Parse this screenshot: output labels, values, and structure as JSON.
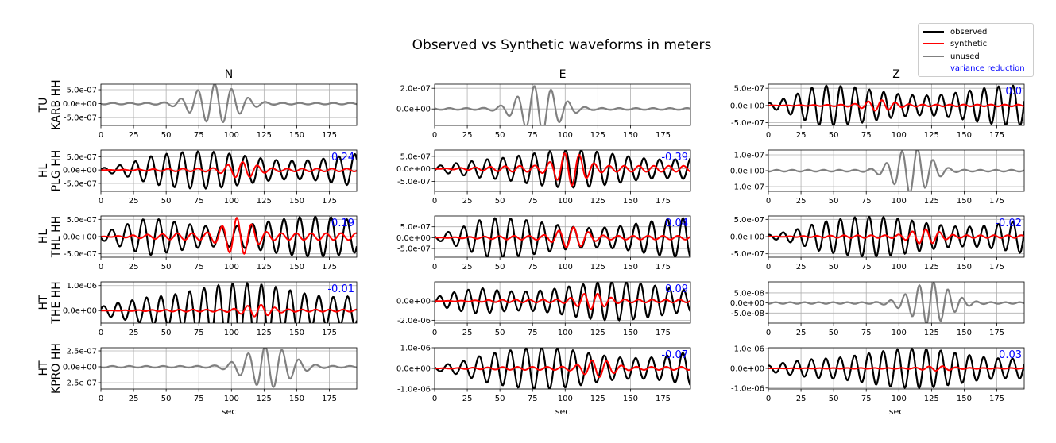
{
  "figure": {
    "title": "Observed vs Synthetic waveforms in meters",
    "xlabel": "sec",
    "legend": {
      "placement": "top-right",
      "entries": [
        {
          "label": "observed",
          "color": "#000000"
        },
        {
          "label": "synthetic",
          "color": "#ff0000"
        },
        {
          "label": "unused",
          "color": "#808080"
        }
      ],
      "vr_label": "variance reduction",
      "vr_color": "#0000ff"
    }
  },
  "chart_data": {
    "type": "line",
    "title": "Observed vs Synthetic waveforms in meters",
    "xlabel": "sec",
    "xlim": [
      0,
      196
    ],
    "xticks": [
      0,
      25,
      50,
      75,
      100,
      125,
      150,
      175
    ],
    "components": [
      "N",
      "E",
      "Z"
    ],
    "grid": true,
    "stations": [
      {
        "net": "TU",
        "station": "KARB HH",
        "traces": [
          {
            "ylim": [
              -7.8e-07,
              7e-07
            ],
            "yticks": [
              {
                "v": 5e-07,
                "t": "5.0e-07"
              },
              {
                "v": 0,
                "t": "0.0e+00"
              },
              {
                "v": -5e-07,
                "t": "-5.0e-07"
              }
            ],
            "used": false,
            "vr": "",
            "amp": 6.8e-07,
            "center": 88,
            "width": 22,
            "period": 13,
            "seed": 1
          },
          {
            "ylim": [
              -1.6e-07,
              2.4e-07
            ],
            "yticks": [
              {
                "v": 2e-07,
                "t": "2.0e-07"
              },
              {
                "v": 0,
                "t": "0.0e+00"
              }
            ],
            "used": false,
            "vr": "",
            "amp": 2.2e-07,
            "center": 80,
            "width": 20,
            "period": 13,
            "seed": 2
          },
          {
            "ylim": [
              -5.8e-07,
              6.2e-07
            ],
            "yticks": [
              {
                "v": 5e-07,
                "t": "5.0e-07"
              },
              {
                "v": 0,
                "t": "0.0e+00"
              },
              {
                "v": -5e-07,
                "t": "-5.0e-07"
              }
            ],
            "used": true,
            "vr": "0.0",
            "amp": 5.8e-07,
            "period": 11,
            "synth_amp": 1.3e-07,
            "synth_center": 85,
            "seed": 3
          }
        ]
      },
      {
        "net": "HL",
        "station": "PLG HH",
        "traces": [
          {
            "ylim": [
              -8e-07,
              7.5e-07
            ],
            "yticks": [
              {
                "v": 5e-07,
                "t": "5.0e-07"
              },
              {
                "v": 0,
                "t": "0.0e+00"
              },
              {
                "v": -5e-07,
                "t": "-5.0e-07"
              }
            ],
            "used": true,
            "vr": "0.24",
            "amp": 7e-07,
            "period": 12,
            "synth_amp": 2.5e-07,
            "synth_center": 108,
            "seed": 4
          },
          {
            "ylim": [
              -9e-07,
              7.5e-07
            ],
            "yticks": [
              {
                "v": 5e-07,
                "t": "5.0e-07"
              },
              {
                "v": 0,
                "t": "0.0e+00"
              },
              {
                "v": -5e-07,
                "t": "-5.0e-07"
              }
            ],
            "used": true,
            "vr": "-0.39",
            "amp": 7.5e-07,
            "period": 12,
            "synth_amp": 5.5e-07,
            "synth_center": 104,
            "seed": 5
          },
          {
            "ylim": [
              -1.3e-07,
              1.3e-07
            ],
            "yticks": [
              {
                "v": 1e-07,
                "t": "1.0e-07"
              },
              {
                "v": 0,
                "t": "0.0e+00"
              },
              {
                "v": -1e-07,
                "t": "-1.0e-07"
              }
            ],
            "used": false,
            "vr": "",
            "amp": 1.4e-07,
            "center": 110,
            "width": 18,
            "period": 12,
            "seed": 6
          }
        ]
      },
      {
        "net": "HL",
        "station": "THL HH",
        "traces": [
          {
            "ylim": [
              -6e-07,
              6e-07
            ],
            "yticks": [
              {
                "v": 5e-07,
                "t": "5.0e-07"
              },
              {
                "v": 0,
                "t": "0.0e+00"
              },
              {
                "v": -5e-07,
                "t": "-5.0e-07"
              }
            ],
            "used": true,
            "vr": "0.19",
            "amp": 5.8e-07,
            "period": 12,
            "synth_amp": 4.5e-07,
            "synth_center": 105,
            "seed": 7
          },
          {
            "ylim": [
              -9e-07,
              1e-06
            ],
            "yticks": [
              {
                "v": 5e-07,
                "t": "5.0e-07"
              },
              {
                "v": 0,
                "t": "0.0e+00"
              },
              {
                "v": -5e-07,
                "t": "-5.0e-07"
              }
            ],
            "used": true,
            "vr": "0.04",
            "amp": 9e-07,
            "period": 12,
            "synth_amp": 4e-07,
            "synth_center": 105,
            "seed": 8
          },
          {
            "ylim": [
              -6e-07,
              6e-07
            ],
            "yticks": [
              {
                "v": 5e-07,
                "t": "5.0e-07"
              },
              {
                "v": 0,
                "t": "0.0e+00"
              },
              {
                "v": -5e-07,
                "t": "-5.0e-07"
              }
            ],
            "used": true,
            "vr": "-0.02",
            "amp": 5.8e-07,
            "period": 11,
            "synth_amp": 1.8e-07,
            "synth_center": 120,
            "seed": 9
          }
        ]
      },
      {
        "net": "HT",
        "station": "THE HH",
        "traces": [
          {
            "ylim": [
              -5e-07,
              1.15e-06
            ],
            "yticks": [
              {
                "v": 1e-06,
                "t": "1.0e-06"
              },
              {
                "v": 0,
                "t": "0.0e+00"
              }
            ],
            "used": true,
            "vr": "-0.01",
            "amp": 1.1e-06,
            "period": 11,
            "synth_amp": 2e-07,
            "synth_center": 120,
            "seed": 10
          },
          {
            "ylim": [
              -2.3e-06,
              2e-06
            ],
            "yticks": [
              {
                "v": 0,
                "t": "0.0e+00"
              },
              {
                "v": -2e-06,
                "t": "-2.0e-06"
              }
            ],
            "used": true,
            "vr": "0.09",
            "amp": 2e-06,
            "period": 11,
            "synth_amp": 7e-07,
            "synth_center": 120,
            "seed": 11
          },
          {
            "ylim": [
              -1e-07,
              1.05e-07
            ],
            "yticks": [
              {
                "v": 5e-08,
                "t": "5.0e-08"
              },
              {
                "v": 0,
                "t": "0.0e+00"
              },
              {
                "v": -5e-08,
                "t": "-5.0e-08"
              }
            ],
            "used": false,
            "vr": "",
            "amp": 1e-07,
            "center": 124,
            "width": 20,
            "period": 11,
            "seed": 12
          }
        ]
      },
      {
        "net": "HT",
        "station": "KPRO HH",
        "traces": [
          {
            "ylim": [
              -3.5e-07,
              3e-07
            ],
            "yticks": [
              {
                "v": 2.5e-07,
                "t": "2.5e-07"
              },
              {
                "v": 0,
                "t": "0.0e+00"
              },
              {
                "v": -2.5e-07,
                "t": "-2.5e-07"
              }
            ],
            "used": false,
            "vr": "",
            "amp": 3.2e-07,
            "center": 128,
            "width": 22,
            "period": 13,
            "seed": 13
          },
          {
            "ylim": [
              -1e-06,
              1e-06
            ],
            "yticks": [
              {
                "v": 1e-06,
                "t": "1.0e-06"
              },
              {
                "v": 0,
                "t": "0.0e+00"
              },
              {
                "v": -1e-06,
                "t": "-1.0e-06"
              }
            ],
            "used": true,
            "vr": "-0.07",
            "amp": 1e-06,
            "period": 12,
            "synth_amp": 3.5e-07,
            "synth_center": 125,
            "seed": 14
          },
          {
            "ylim": [
              -1.05e-06,
              1.05e-06
            ],
            "yticks": [
              {
                "v": 1e-06,
                "t": "1.0e-06"
              },
              {
                "v": 0,
                "t": "0.0e+00"
              },
              {
                "v": -1e-06,
                "t": "-1.0e-06"
              }
            ],
            "used": true,
            "vr": "0.03",
            "amp": 1e-06,
            "period": 11,
            "synth_amp": 1e-07,
            "synth_center": 130,
            "seed": 15
          }
        ]
      }
    ]
  }
}
